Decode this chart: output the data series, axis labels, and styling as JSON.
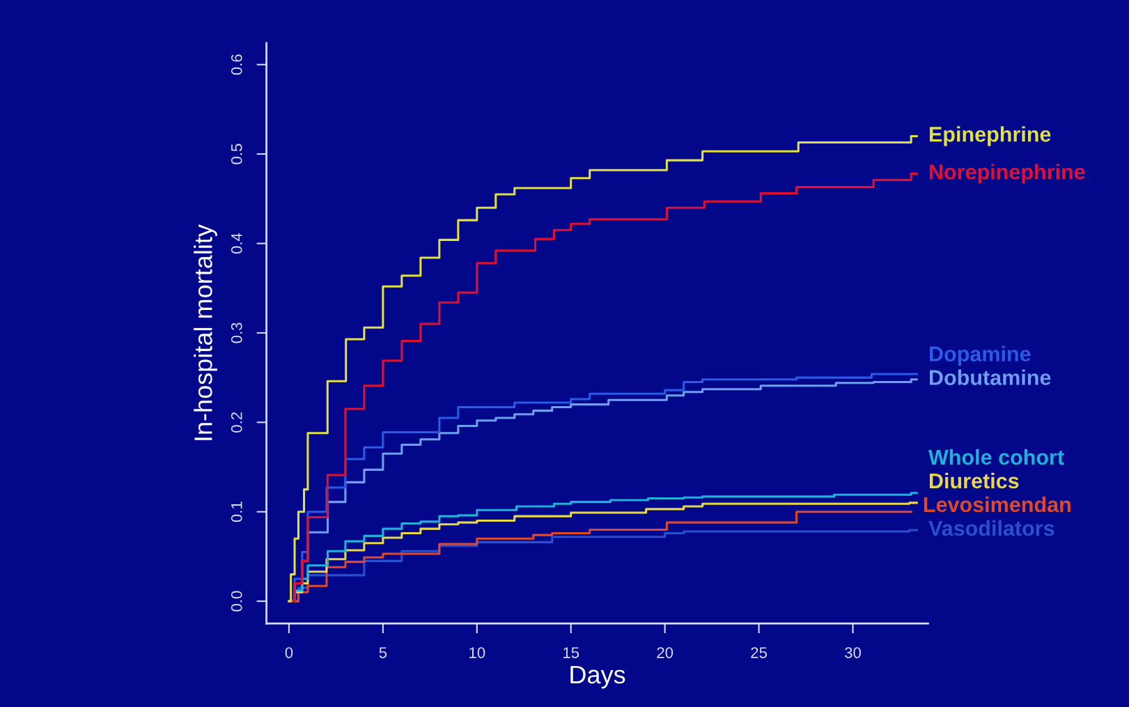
{
  "chart_data": {
    "type": "step",
    "xlabel": "Days",
    "ylabel": "In-hospital mortality",
    "xlim": [
      -1.2,
      34
    ],
    "ylim": [
      -0.025,
      0.624
    ],
    "xticks": [
      0,
      5,
      10,
      15,
      20,
      25,
      30
    ],
    "yticks": [
      {
        "value": 0,
        "label": "0.0"
      },
      0.1,
      0.2,
      0.3,
      0.4,
      0.5,
      0.6
    ],
    "grid": false,
    "legend": false,
    "marker": "none",
    "line_style": "solid",
    "series": [
      {
        "name": "Epinephrine",
        "color": "#e0e040",
        "x": [
          0,
          0.1,
          0.3,
          0.5,
          0.8,
          1.0,
          2.05,
          3.03,
          4.0,
          5.0,
          6.0,
          7.0,
          8.0,
          9.0,
          10.0,
          11.0,
          12.0,
          15.0,
          16.0,
          20.1,
          22.0,
          27.1,
          33.1,
          33.4
        ],
        "values": [
          0,
          0.03,
          0.07,
          0.1,
          0.125,
          0.188,
          0.246,
          0.293,
          0.306,
          0.352,
          0.364,
          0.384,
          0.404,
          0.426,
          0.44,
          0.455,
          0.462,
          0.473,
          0.482,
          0.493,
          0.503,
          0.513,
          0.52,
          0.52
        ]
      },
      {
        "name": "Norepinephrine",
        "color": "#e01030",
        "x": [
          0,
          0.3,
          0.7,
          1.0,
          2.05,
          3.0,
          4.0,
          5.0,
          6.0,
          7.0,
          8.0,
          9.0,
          10.0,
          11.0,
          13.1,
          14.1,
          15.0,
          16.0,
          20.1,
          22.1,
          25.1,
          27.0,
          31.1,
          33.1,
          33.4
        ],
        "values": [
          0,
          0.02,
          0.045,
          0.094,
          0.141,
          0.215,
          0.241,
          0.269,
          0.291,
          0.31,
          0.334,
          0.345,
          0.378,
          0.392,
          0.405,
          0.415,
          0.422,
          0.427,
          0.44,
          0.447,
          0.456,
          0.463,
          0.471,
          0.478,
          0.478
        ]
      },
      {
        "name": "Dopamine",
        "color": "#2a5ae8",
        "x": [
          0,
          0.3,
          0.7,
          1.0,
          2.0,
          3.0,
          4.0,
          5.0,
          8.0,
          9.0,
          12.0,
          15.0,
          16.0,
          20.0,
          21.0,
          22.0,
          27.0,
          31.0,
          33.4
        ],
        "values": [
          0,
          0.025,
          0.055,
          0.1,
          0.127,
          0.159,
          0.172,
          0.189,
          0.205,
          0.217,
          0.222,
          0.226,
          0.232,
          0.236,
          0.245,
          0.248,
          0.25,
          0.254,
          0.254
        ]
      },
      {
        "name": "Dobutamine",
        "color": "#6fa0f0",
        "x": [
          0,
          0.3,
          0.7,
          1.0,
          2.06,
          3.0,
          4.0,
          5.0,
          6.0,
          7.0,
          8.0,
          9.0,
          10.0,
          11.0,
          12.0,
          13.0,
          14.0,
          15.0,
          17.0,
          20.1,
          21.0,
          22.0,
          25.1,
          29.1,
          31.1,
          33.1,
          33.4
        ],
        "values": [
          0,
          0.02,
          0.045,
          0.077,
          0.111,
          0.133,
          0.147,
          0.165,
          0.175,
          0.181,
          0.188,
          0.196,
          0.202,
          0.205,
          0.209,
          0.213,
          0.217,
          0.22,
          0.225,
          0.23,
          0.234,
          0.237,
          0.241,
          0.244,
          0.245,
          0.248,
          0.248
        ]
      },
      {
        "name": "Whole cohort",
        "color": "#20b0d8",
        "x": [
          0,
          0.3,
          0.7,
          1.0,
          2.06,
          3.0,
          4.0,
          5.0,
          6.0,
          7.0,
          8.0,
          9.0,
          10.0,
          12.1,
          14.1,
          15.0,
          17.1,
          19.1,
          21.0,
          22.0,
          29.0,
          33.1,
          33.4
        ],
        "values": [
          0,
          0.012,
          0.025,
          0.04,
          0.056,
          0.067,
          0.073,
          0.081,
          0.087,
          0.089,
          0.095,
          0.096,
          0.102,
          0.106,
          0.109,
          0.111,
          0.113,
          0.115,
          0.116,
          0.117,
          0.119,
          0.121,
          0.121
        ]
      },
      {
        "name": "Diuretics",
        "color": "#e8d848",
        "x": [
          0,
          0.3,
          0.7,
          1.0,
          2.0,
          3.0,
          4.0,
          5.0,
          6.0,
          7.0,
          8.0,
          9.0,
          10.0,
          12.0,
          15.0,
          19.0,
          21.0,
          22.0,
          33.0,
          33.4
        ],
        "values": [
          0,
          0.01,
          0.02,
          0.033,
          0.047,
          0.057,
          0.065,
          0.071,
          0.076,
          0.081,
          0.086,
          0.088,
          0.09,
          0.095,
          0.099,
          0.103,
          0.106,
          0.109,
          0.11,
          0.11
        ]
      },
      {
        "name": "Levosimendan",
        "color": "#e04828",
        "x": [
          0,
          0.5,
          1.0,
          2.0,
          3.0,
          4.0,
          5.0,
          8.0,
          10.0,
          13.0,
          14.0,
          16.0,
          20.1,
          27.0,
          33.1
        ],
        "values": [
          0,
          0.01,
          0.017,
          0.038,
          0.044,
          0.049,
          0.053,
          0.064,
          0.07,
          0.074,
          0.076,
          0.08,
          0.088,
          0.1,
          0.1
        ]
      },
      {
        "name": "Vasodilators",
        "color": "#2850d0",
        "x": [
          0,
          0.5,
          1.0,
          4.0,
          6.0,
          8.0,
          10.0,
          14.0,
          20.0,
          21.0,
          33.0,
          33.4
        ],
        "values": [
          0,
          0.015,
          0.029,
          0.045,
          0.056,
          0.062,
          0.066,
          0.072,
          0.076,
          0.078,
          0.0795,
          0.0795
        ]
      }
    ]
  }
}
